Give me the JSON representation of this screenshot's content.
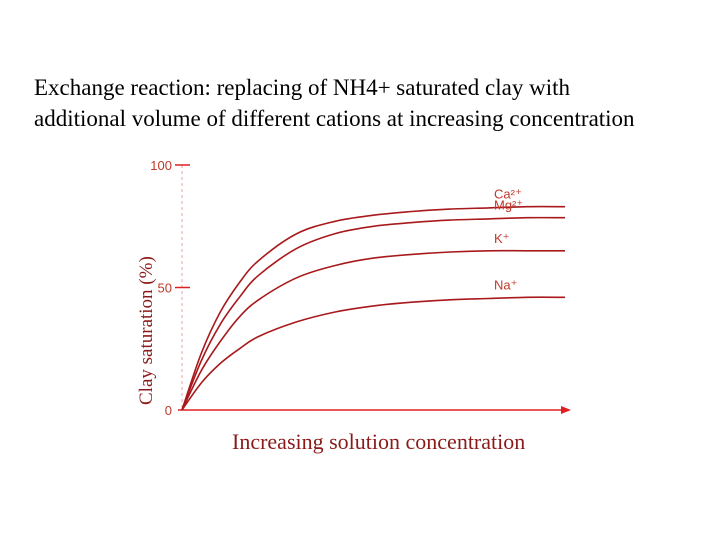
{
  "slide": {
    "title_line1": "Exchange reaction: replacing of NH4+ saturated clay with",
    "title_line2": "additional volume of different cations at increasing concentration"
  },
  "colors": {
    "curve": "#a8191c",
    "axis": "#e02020",
    "guide": "#e8a0a0",
    "label": "#8b1a1a"
  },
  "chart_data": {
    "type": "line",
    "ylabel": "Clay saturation (%)",
    "xlabel": "Increasing solution concentration",
    "ylim": [
      0,
      100
    ],
    "yticks": [
      "0",
      "50",
      "100"
    ],
    "grid": false,
    "legend": "inline labels at line ends",
    "x": [
      0,
      0.05,
      0.1,
      0.15,
      0.2,
      0.3,
      0.4,
      0.5,
      0.6,
      0.7,
      0.8,
      0.9,
      1.0
    ],
    "series": [
      {
        "name": "Ca²⁺",
        "values": [
          0,
          23,
          40,
          52,
          61,
          72,
          77,
          79.5,
          81,
          82,
          82.5,
          83,
          83
        ]
      },
      {
        "name": "Mg²⁺",
        "values": [
          0,
          20,
          35,
          46,
          55,
          66,
          72,
          75,
          76.5,
          77.5,
          78,
          78.5,
          78.5
        ]
      },
      {
        "name": "K⁺",
        "values": [
          0,
          16,
          28,
          38,
          45,
          54,
          59,
          62,
          63.5,
          64.5,
          65,
          65,
          65
        ]
      },
      {
        "name": "Na⁺",
        "values": [
          0,
          11,
          19,
          25,
          30,
          36,
          40,
          42.5,
          44,
          45,
          45.5,
          46,
          46
        ]
      }
    ]
  }
}
